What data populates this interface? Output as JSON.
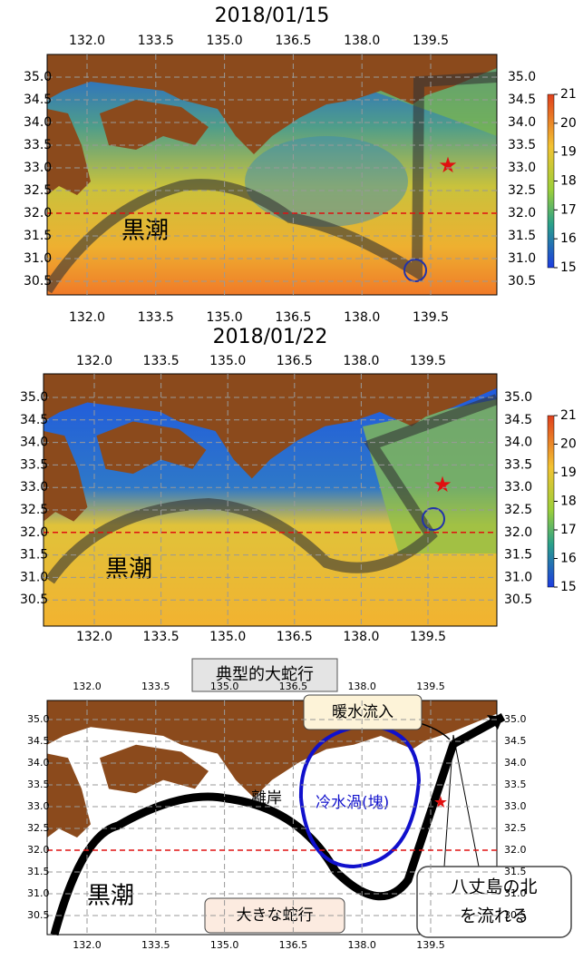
{
  "panels": [
    {
      "title": "2018/01/15",
      "x_ticks": [
        "132.0",
        "133.5",
        "135.0",
        "136.5",
        "138.0",
        "139.5"
      ],
      "y_ticks": [
        "35.0",
        "34.5",
        "34.0",
        "33.5",
        "33.0",
        "32.5",
        "32.0",
        "31.5",
        "31.0",
        "30.5"
      ],
      "colorbar_ticks": [
        "21",
        "20",
        "19",
        "18",
        "17",
        "16",
        "15"
      ],
      "label": "黒潮"
    },
    {
      "title": "2018/01/22",
      "x_ticks": [
        "132.0",
        "133.5",
        "135.0",
        "136.5",
        "138.0",
        "139.5"
      ],
      "y_ticks": [
        "35.0",
        "34.5",
        "34.0",
        "33.5",
        "33.0",
        "32.5",
        "32.0",
        "31.5",
        "31.0",
        "30.5"
      ],
      "colorbar_ticks": [
        "21",
        "20",
        "19",
        "18",
        "17",
        "16",
        "15"
      ],
      "label": "黒潮"
    }
  ],
  "diagram": {
    "title": "典型的大蛇行",
    "x_ticks": [
      "132.0",
      "133.5",
      "135.0",
      "136.5",
      "138.0",
      "139.5"
    ],
    "y_ticks": [
      "35.0",
      "34.5",
      "34.0",
      "33.5",
      "33.0",
      "32.5",
      "32.0",
      "31.5",
      "31.0",
      "30.5"
    ],
    "label": "黒潮",
    "warm_inflow": "暖水流入",
    "cold_eddy": "冷水渦(塊)",
    "offshore": "離岸",
    "hachijo_line1": "八丈島の北",
    "hachijo_line2": "を流れる",
    "large_meander": "大きな蛇行"
  }
}
